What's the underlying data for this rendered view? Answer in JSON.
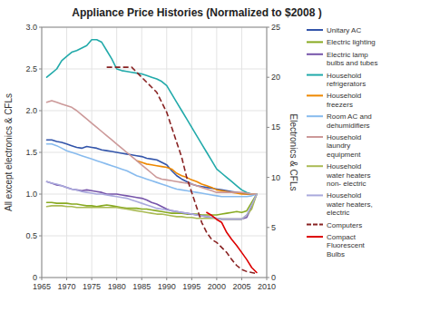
{
  "chart_data": {
    "type": "line",
    "title": "Appliance Price Histories (Normalized to $2008 )",
    "ylabel": "All except electronics & CFLs",
    "y2label": "Electronics & CFLs",
    "xlim": [
      1965,
      2010
    ],
    "xticks": [
      1965,
      1970,
      1975,
      1980,
      1985,
      1990,
      1995,
      2000,
      2005,
      2010
    ],
    "ylim": [
      0,
      3
    ],
    "yticks": [
      0,
      0.5,
      {
        "value": 1,
        "label": "1.0"
      },
      1.5,
      {
        "value": 2,
        "label": "2.0"
      },
      2.5,
      {
        "value": 3,
        "label": "3.0"
      }
    ],
    "y2lim": [
      0,
      25
    ],
    "y2ticks": [
      0,
      5,
      10,
      15,
      20,
      25
    ],
    "grid": true,
    "legend": "right",
    "series": [
      {
        "name": "Unitary AC",
        "color": "#3355aa",
        "line_style": "solid",
        "x": [
          1966,
          1967,
          1968,
          1969,
          1970,
          1971,
          1972,
          1973,
          1974,
          1975,
          1976,
          1977,
          1978,
          1979,
          1980,
          1981,
          1982,
          1983,
          1984,
          1985,
          1986,
          1987,
          1988,
          1989,
          1990,
          1991,
          1992,
          1993,
          1994,
          1995,
          1996,
          1997,
          1998,
          1999,
          2000,
          2001,
          2002,
          2003,
          2004,
          2005,
          2006,
          2007,
          2008
        ],
        "values": [
          1.65,
          1.65,
          1.63,
          1.62,
          1.6,
          1.58,
          1.56,
          1.55,
          1.57,
          1.56,
          1.55,
          1.53,
          1.52,
          1.51,
          1.5,
          1.49,
          1.48,
          1.47,
          1.46,
          1.45,
          1.43,
          1.42,
          1.41,
          1.38,
          1.35,
          1.28,
          1.22,
          1.18,
          1.15,
          1.12,
          1.1,
          1.09,
          1.08,
          1.07,
          1.06,
          1.05,
          1.04,
          1.03,
          1.02,
          1.01,
          1.0,
          1.0,
          1.0
        ]
      },
      {
        "name": "Electric lighting",
        "color": "#88aa22",
        "line_style": "solid",
        "x": [
          1966,
          1967,
          1968,
          1969,
          1970,
          1971,
          1972,
          1973,
          1974,
          1975,
          1976,
          1977,
          1978,
          1979,
          1980,
          1981,
          1982,
          1983,
          1984,
          1985,
          1986,
          1987,
          1988,
          1989,
          1990,
          1991,
          1992,
          1993,
          1994,
          1995,
          1996,
          1997,
          1998,
          1999,
          2000,
          2001,
          2002,
          2003,
          2004,
          2005,
          2006,
          2007,
          2008
        ],
        "values": [
          0.9,
          0.9,
          0.89,
          0.89,
          0.89,
          0.88,
          0.88,
          0.87,
          0.86,
          0.86,
          0.85,
          0.86,
          0.87,
          0.86,
          0.85,
          0.84,
          0.83,
          0.83,
          0.83,
          0.82,
          0.82,
          0.81,
          0.8,
          0.79,
          0.78,
          0.77,
          0.77,
          0.77,
          0.76,
          0.76,
          0.76,
          0.75,
          0.75,
          0.75,
          0.75,
          0.76,
          0.77,
          0.78,
          0.79,
          0.78,
          0.8,
          0.9,
          1.0
        ]
      },
      {
        "name": "Electric lamp\nbulbs and tubes",
        "color": "#7755aa",
        "line_style": "solid",
        "x": [
          1966,
          1967,
          1968,
          1969,
          1970,
          1971,
          1972,
          1973,
          1974,
          1975,
          1976,
          1977,
          1978,
          1979,
          1980,
          1981,
          1982,
          1983,
          1984,
          1985,
          1986,
          1987,
          1988,
          1989,
          1990,
          1991,
          1992,
          1993,
          1994,
          1995,
          1996,
          1997,
          1998,
          1999,
          2000,
          2001,
          2002,
          2003,
          2004,
          2005,
          2006,
          2007,
          2008
        ],
        "values": [
          1.15,
          1.13,
          1.11,
          1.1,
          1.08,
          1.06,
          1.05,
          1.04,
          1.05,
          1.04,
          1.03,
          1.02,
          1.0,
          1.0,
          1.0,
          0.99,
          0.98,
          0.97,
          0.96,
          0.95,
          0.93,
          0.9,
          0.88,
          0.85,
          0.82,
          0.8,
          0.79,
          0.78,
          0.77,
          0.76,
          0.75,
          0.74,
          0.73,
          0.72,
          0.71,
          0.7,
          0.7,
          0.7,
          0.7,
          0.7,
          0.72,
          0.85,
          1.0
        ]
      },
      {
        "name": "Household\nrefrigerators",
        "color": "#22aaaa",
        "line_style": "solid",
        "x": [
          1966,
          1967,
          1968,
          1969,
          1970,
          1971,
          1972,
          1973,
          1974,
          1975,
          1976,
          1977,
          1978,
          1979,
          1980,
          1981,
          1982,
          1983,
          1984,
          1985,
          1986,
          1987,
          1988,
          1989,
          1990,
          1991,
          1992,
          1993,
          1994,
          1995,
          1996,
          1997,
          1998,
          1999,
          2000,
          2001,
          2002,
          2003,
          2004,
          2005,
          2006,
          2007,
          2008
        ],
        "values": [
          2.4,
          2.45,
          2.5,
          2.6,
          2.65,
          2.7,
          2.72,
          2.75,
          2.78,
          2.85,
          2.85,
          2.82,
          2.72,
          2.62,
          2.5,
          2.48,
          2.47,
          2.46,
          2.45,
          2.44,
          2.42,
          2.4,
          2.38,
          2.35,
          2.3,
          2.2,
          2.1,
          2.0,
          1.9,
          1.8,
          1.7,
          1.6,
          1.5,
          1.4,
          1.3,
          1.25,
          1.2,
          1.15,
          1.1,
          1.05,
          1.02,
          1.0,
          1.0
        ]
      },
      {
        "name": "Household\nfreezers",
        "color": "#ee8800",
        "line_style": "solid",
        "x": [
          1984,
          1985,
          1986,
          1987,
          1988,
          1989,
          1990,
          1991,
          1992,
          1993,
          1994,
          1995,
          1996,
          1997,
          1998,
          1999,
          2000,
          2001,
          2002,
          2003,
          2004,
          2005,
          2006,
          2007,
          2008
        ],
        "values": [
          1.4,
          1.38,
          1.36,
          1.35,
          1.34,
          1.33,
          1.32,
          1.3,
          1.25,
          1.22,
          1.2,
          1.17,
          1.15,
          1.12,
          1.1,
          1.08,
          1.05,
          1.04,
          1.03,
          1.02,
          1.01,
          1.0,
          1.0,
          1.0,
          1.0
        ]
      },
      {
        "name": "Room AC and\ndehumidifiers",
        "color": "#88bbee",
        "line_style": "solid",
        "x": [
          1966,
          1967,
          1968,
          1969,
          1970,
          1971,
          1972,
          1973,
          1974,
          1975,
          1976,
          1977,
          1978,
          1979,
          1980,
          1981,
          1982,
          1983,
          1984,
          1985,
          1986,
          1987,
          1988,
          1989,
          1990,
          1991,
          1992,
          1993,
          1994,
          1995,
          1996,
          1997,
          1998,
          1999,
          2000,
          2001,
          2002,
          2003,
          2004,
          2005,
          2006,
          2007,
          2008
        ],
        "values": [
          1.6,
          1.6,
          1.58,
          1.55,
          1.52,
          1.5,
          1.48,
          1.46,
          1.44,
          1.42,
          1.4,
          1.38,
          1.36,
          1.34,
          1.32,
          1.3,
          1.28,
          1.25,
          1.22,
          1.2,
          1.18,
          1.16,
          1.14,
          1.12,
          1.1,
          1.08,
          1.06,
          1.05,
          1.04,
          1.03,
          1.02,
          1.01,
          1.0,
          0.99,
          0.98,
          0.97,
          0.97,
          0.97,
          0.97,
          0.97,
          0.97,
          0.98,
          1.0
        ]
      },
      {
        "name": "Household\nlaundry\nequipment",
        "color": "#cc9999",
        "line_style": "solid",
        "x": [
          1966,
          1967,
          1968,
          1969,
          1970,
          1971,
          1972,
          1973,
          1974,
          1975,
          1976,
          1977,
          1978,
          1979,
          1980,
          1981,
          1982,
          1983,
          1984,
          1985,
          1986,
          1987,
          1988,
          1989,
          1990,
          1991,
          1992,
          1993,
          1994,
          1995,
          1996,
          1997,
          1998,
          1999,
          2000,
          2001,
          2002,
          2003,
          2004,
          2005,
          2006,
          2007,
          2008
        ],
        "values": [
          2.1,
          2.12,
          2.1,
          2.08,
          2.06,
          2.04,
          2.0,
          1.95,
          1.9,
          1.85,
          1.8,
          1.75,
          1.7,
          1.65,
          1.6,
          1.55,
          1.5,
          1.45,
          1.4,
          1.35,
          1.3,
          1.25,
          1.2,
          1.18,
          1.17,
          1.16,
          1.15,
          1.14,
          1.13,
          1.12,
          1.1,
          1.08,
          1.06,
          1.04,
          1.02,
          1.02,
          1.02,
          1.02,
          1.02,
          1.02,
          1.01,
          1.0,
          1.0
        ]
      },
      {
        "name": "Household\nwater heaters\nnon- electric",
        "color": "#aabb55",
        "line_style": "solid",
        "x": [
          1966,
          1967,
          1968,
          1969,
          1970,
          1971,
          1972,
          1973,
          1974,
          1975,
          1976,
          1977,
          1978,
          1979,
          1980,
          1981,
          1982,
          1983,
          1984,
          1985,
          1986,
          1987,
          1988,
          1989,
          1990,
          1991,
          1992,
          1993,
          1994,
          1995,
          1996,
          1997,
          1998,
          1999,
          2000,
          2001,
          2002,
          2003,
          2004,
          2005,
          2006,
          2007,
          2008
        ],
        "values": [
          0.85,
          0.86,
          0.86,
          0.86,
          0.85,
          0.85,
          0.84,
          0.84,
          0.84,
          0.84,
          0.84,
          0.84,
          0.84,
          0.84,
          0.84,
          0.83,
          0.82,
          0.81,
          0.8,
          0.79,
          0.78,
          0.77,
          0.76,
          0.76,
          0.75,
          0.74,
          0.73,
          0.73,
          0.72,
          0.72,
          0.71,
          0.71,
          0.71,
          0.71,
          0.71,
          0.7,
          0.7,
          0.7,
          0.7,
          0.7,
          0.75,
          0.82,
          1.0
        ]
      },
      {
        "name": "Household\nwater heaters,\nelectric",
        "color": "#aaaadd",
        "line_style": "solid",
        "x": [
          1966,
          1967,
          1968,
          1969,
          1970,
          1971,
          1972,
          1973,
          1974,
          1975,
          1976,
          1977,
          1978,
          1979,
          1980,
          1981,
          1982,
          1983,
          1984,
          1985,
          1986,
          1987,
          1988,
          1989,
          1990,
          1991,
          1992,
          1993,
          1994,
          1995,
          1996,
          1997,
          1998,
          1999,
          2000,
          2001,
          2002,
          2003,
          2004,
          2005,
          2006,
          2007,
          2008
        ],
        "values": [
          1.15,
          1.13,
          1.12,
          1.1,
          1.08,
          1.06,
          1.05,
          1.03,
          1.02,
          1.01,
          1.0,
          1.0,
          0.99,
          0.98,
          0.97,
          0.96,
          0.95,
          0.93,
          0.91,
          0.89,
          0.87,
          0.85,
          0.83,
          0.82,
          0.81,
          0.8,
          0.79,
          0.78,
          0.77,
          0.76,
          0.75,
          0.74,
          0.73,
          0.72,
          0.71,
          0.7,
          0.7,
          0.7,
          0.7,
          0.7,
          0.75,
          0.87,
          1.0
        ]
      },
      {
        "name": "Computers",
        "color": "#882222",
        "line_style": "dashed",
        "axis": "y2",
        "x": [
          1978,
          1979,
          1980,
          1981,
          1982,
          1983,
          1984,
          1985,
          1986,
          1987,
          1988,
          1989,
          1990,
          1991,
          1992,
          1993,
          1994,
          1995,
          1996,
          1997,
          1998,
          1999,
          2000,
          2001,
          2002,
          2003,
          2004,
          2005,
          2006,
          2007,
          2008
        ],
        "values": [
          21.0,
          21.0,
          21.0,
          21.0,
          21.0,
          21.0,
          20.5,
          20.0,
          19.5,
          19.0,
          18.5,
          17.5,
          16.5,
          15.0,
          13.5,
          12.0,
          10.0,
          8.5,
          7.0,
          5.5,
          4.5,
          3.8,
          3.5,
          3.0,
          2.5,
          1.8,
          1.2,
          0.8,
          0.6,
          0.5,
          0.4
        ]
      },
      {
        "name": "Compact\nFluorescent\nBulbs",
        "color": "#dd0000",
        "line_style": "solid",
        "axis": "y2",
        "x": [
          1998,
          1999,
          2000,
          2001,
          2002,
          2003,
          2004,
          2005,
          2006,
          2007,
          2008
        ],
        "values": [
          6.5,
          6.2,
          5.8,
          5.5,
          4.5,
          3.8,
          3.2,
          2.5,
          1.8,
          1.0,
          0.5
        ]
      }
    ]
  }
}
